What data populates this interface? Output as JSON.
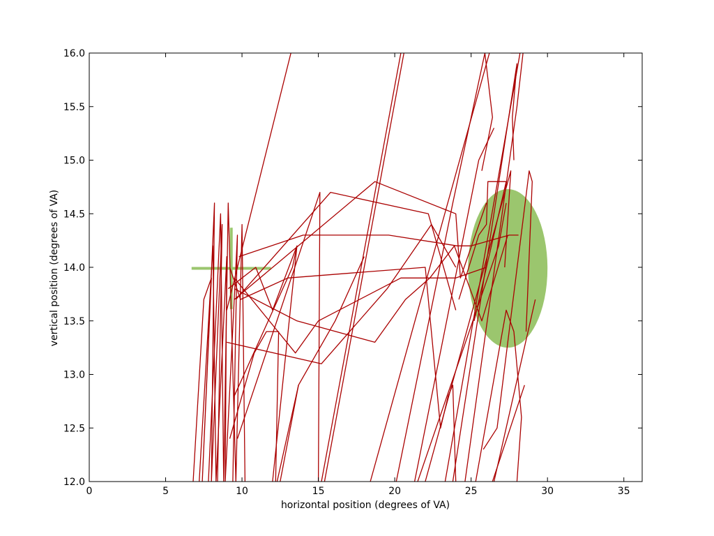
{
  "chart_data": {
    "type": "line",
    "title": "",
    "xlabel": "horizontal position (degrees of VA)",
    "ylabel": "vertical position (degrees of VA)",
    "xlim": [
      0,
      36.2
    ],
    "ylim": [
      12.0,
      16.0
    ],
    "xticks": [
      0,
      5,
      10,
      15,
      20,
      25,
      30,
      35
    ],
    "yticks": [
      12.0,
      12.5,
      13.0,
      13.5,
      14.0,
      14.5,
      15.0,
      15.5,
      16.0
    ],
    "xtick_labels": [
      "0",
      "5",
      "10",
      "15",
      "20",
      "25",
      "30",
      "35"
    ],
    "ytick_labels": [
      "12.0",
      "12.5",
      "13.0",
      "13.5",
      "14.0",
      "14.5",
      "15.0",
      "15.5",
      "16.0"
    ],
    "grid": false,
    "legend": "none",
    "trace_color": "#aa0000",
    "marker_color": "#9bc66e",
    "fixation_cross": {
      "x": 9.3,
      "y": 13.99,
      "half_width_x": 2.6,
      "half_height_y": 0.38
    },
    "target_circle": {
      "x": 27.4,
      "y": 13.99,
      "radius_x": 2.6,
      "radius_y": 0.74
    },
    "series": [
      {
        "points": [
          [
            7.8,
            12.0
          ],
          [
            8.6,
            14.5
          ],
          [
            8.8,
            12.0
          ],
          [
            9.1,
            14.6
          ],
          [
            9.6,
            12.0
          ],
          [
            10.0,
            14.4
          ],
          [
            10.2,
            12.0
          ]
        ]
      },
      {
        "points": [
          [
            6.8,
            12.0
          ],
          [
            7.5,
            13.7
          ],
          [
            8.0,
            13.9
          ],
          [
            7.4,
            12.0
          ],
          [
            8.2,
            14.6
          ],
          [
            8.0,
            12.0
          ],
          [
            8.7,
            14.4
          ],
          [
            8.4,
            12.0
          ]
        ]
      },
      {
        "points": [
          [
            7.2,
            12.0
          ],
          [
            8.1,
            14.2
          ],
          [
            8.3,
            12.0
          ],
          [
            9.0,
            14.1
          ],
          [
            8.9,
            12.0
          ],
          [
            9.7,
            14.3
          ],
          [
            9.4,
            12.0
          ]
        ]
      },
      {
        "points": [
          [
            9.2,
            14.0
          ],
          [
            9.9,
            13.7
          ],
          [
            13.0,
            13.9
          ],
          [
            22.0,
            14.0
          ],
          [
            23.0,
            12.5
          ],
          [
            23.5,
            12.8
          ],
          [
            23.8,
            12.9
          ],
          [
            24.0,
            12.0
          ]
        ]
      },
      {
        "points": [
          [
            9.6,
            13.7
          ],
          [
            15.8,
            14.7
          ],
          [
            22.2,
            14.5
          ],
          [
            24.0,
            13.6
          ]
        ]
      },
      {
        "points": [
          [
            9.5,
            13.7
          ],
          [
            18.7,
            14.8
          ],
          [
            24.0,
            14.5
          ],
          [
            24.3,
            13.9
          ],
          [
            26.0,
            14.6
          ]
        ]
      },
      {
        "points": [
          [
            9.8,
            14.1
          ],
          [
            14.0,
            14.3
          ],
          [
            19.6,
            14.3
          ],
          [
            24.1,
            14.2
          ],
          [
            25.0,
            14.2
          ],
          [
            27.5,
            14.3
          ],
          [
            28.1,
            14.3
          ]
        ]
      },
      {
        "points": [
          [
            9.5,
            13.8
          ],
          [
            13.6,
            13.5
          ],
          [
            18.7,
            13.3
          ],
          [
            20.7,
            13.7
          ],
          [
            22.3,
            13.9
          ],
          [
            23.9,
            14.2
          ],
          [
            25.7,
            13.5
          ],
          [
            27.4,
            14.3
          ]
        ]
      },
      {
        "points": [
          [
            9.5,
            13.9
          ],
          [
            13.5,
            13.2
          ],
          [
            15.0,
            13.5
          ],
          [
            20.4,
            13.9
          ],
          [
            24.0,
            13.9
          ],
          [
            26.0,
            14.0
          ]
        ]
      },
      {
        "points": [
          [
            9.0,
            13.3
          ],
          [
            15.2,
            13.1
          ],
          [
            19.5,
            13.8
          ],
          [
            22.4,
            14.4
          ],
          [
            24.0,
            14.0
          ]
        ]
      },
      {
        "points": [
          [
            9.1,
            13.8
          ],
          [
            10.9,
            14.0
          ],
          [
            12.0,
            13.6
          ],
          [
            13.6,
            14.2
          ],
          [
            12.0,
            12.0
          ]
        ]
      },
      {
        "points": [
          [
            9.2,
            12.4
          ],
          [
            10.8,
            13.2
          ],
          [
            11.6,
            13.4
          ],
          [
            12.4,
            13.4
          ],
          [
            12.2,
            12.0
          ]
        ]
      },
      {
        "points": [
          [
            9.7,
            12.4
          ],
          [
            15.1,
            14.7
          ],
          [
            15.0,
            12.0
          ]
        ]
      },
      {
        "points": [
          [
            12.5,
            12.0
          ],
          [
            13.7,
            12.9
          ]
        ]
      },
      {
        "points": [
          [
            9.5,
            12.8
          ],
          [
            13.3,
            14.0
          ],
          [
            13.6,
            14.2
          ]
        ]
      },
      {
        "points": [
          [
            9.0,
            13.6
          ],
          [
            13.2,
            16.0
          ]
        ]
      },
      {
        "points": [
          [
            12.3,
            12.0
          ],
          [
            13.7,
            12.9
          ],
          [
            16.1,
            13.5
          ],
          [
            18.0,
            14.1
          ]
        ]
      },
      {
        "points": [
          [
            15.2,
            12.0
          ],
          [
            20.4,
            16.0
          ]
        ]
      },
      {
        "points": [
          [
            15.4,
            12.0
          ],
          [
            20.6,
            16.0
          ]
        ]
      },
      {
        "points": [
          [
            18.4,
            12.0
          ],
          [
            26.2,
            16.0
          ]
        ]
      },
      {
        "points": [
          [
            20.1,
            12.0
          ],
          [
            23.8,
            14.6
          ],
          [
            25.9,
            16.0
          ],
          [
            26.4,
            15.4
          ],
          [
            25.7,
            14.9
          ]
        ]
      },
      {
        "points": [
          [
            21.3,
            12.0
          ],
          [
            25.5,
            15.0
          ],
          [
            26.5,
            15.3
          ]
        ]
      },
      {
        "points": [
          [
            21.5,
            12.0
          ],
          [
            26.8,
            14.2
          ],
          [
            27.3,
            14.6
          ]
        ]
      },
      {
        "points": [
          [
            22.0,
            12.0
          ],
          [
            27.6,
            14.9
          ],
          [
            27.2,
            14.0
          ]
        ]
      },
      {
        "points": [
          [
            23.3,
            12.0
          ],
          [
            28.2,
            16.0
          ],
          [
            27.6,
            16.0
          ]
        ]
      },
      {
        "points": [
          [
            23.8,
            12.0
          ],
          [
            28.0,
            15.9
          ],
          [
            27.7,
            15.4
          ],
          [
            27.8,
            15.0
          ]
        ]
      },
      {
        "points": [
          [
            24.6,
            12.0
          ],
          [
            28.0,
            15.5
          ],
          [
            28.4,
            16.0
          ]
        ]
      },
      {
        "points": [
          [
            25.3,
            12.0
          ],
          [
            27.3,
            13.6
          ],
          [
            27.8,
            13.4
          ],
          [
            28.3,
            12.6
          ],
          [
            28.0,
            12.0
          ]
        ]
      },
      {
        "points": [
          [
            25.8,
            12.3
          ],
          [
            26.7,
            12.5
          ],
          [
            28.8,
            14.9
          ],
          [
            29.0,
            14.8
          ],
          [
            28.6,
            13.4
          ]
        ]
      },
      {
        "points": [
          [
            26.4,
            12.0
          ],
          [
            28.5,
            12.9
          ]
        ]
      },
      {
        "points": [
          [
            26.5,
            12.0
          ],
          [
            29.2,
            13.7
          ]
        ]
      },
      {
        "points": [
          [
            24.2,
            13.7
          ],
          [
            25.5,
            14.3
          ],
          [
            26.0,
            14.4
          ],
          [
            26.1,
            14.8
          ],
          [
            27.3,
            14.8
          ],
          [
            25.2,
            13.5
          ]
        ]
      }
    ]
  }
}
